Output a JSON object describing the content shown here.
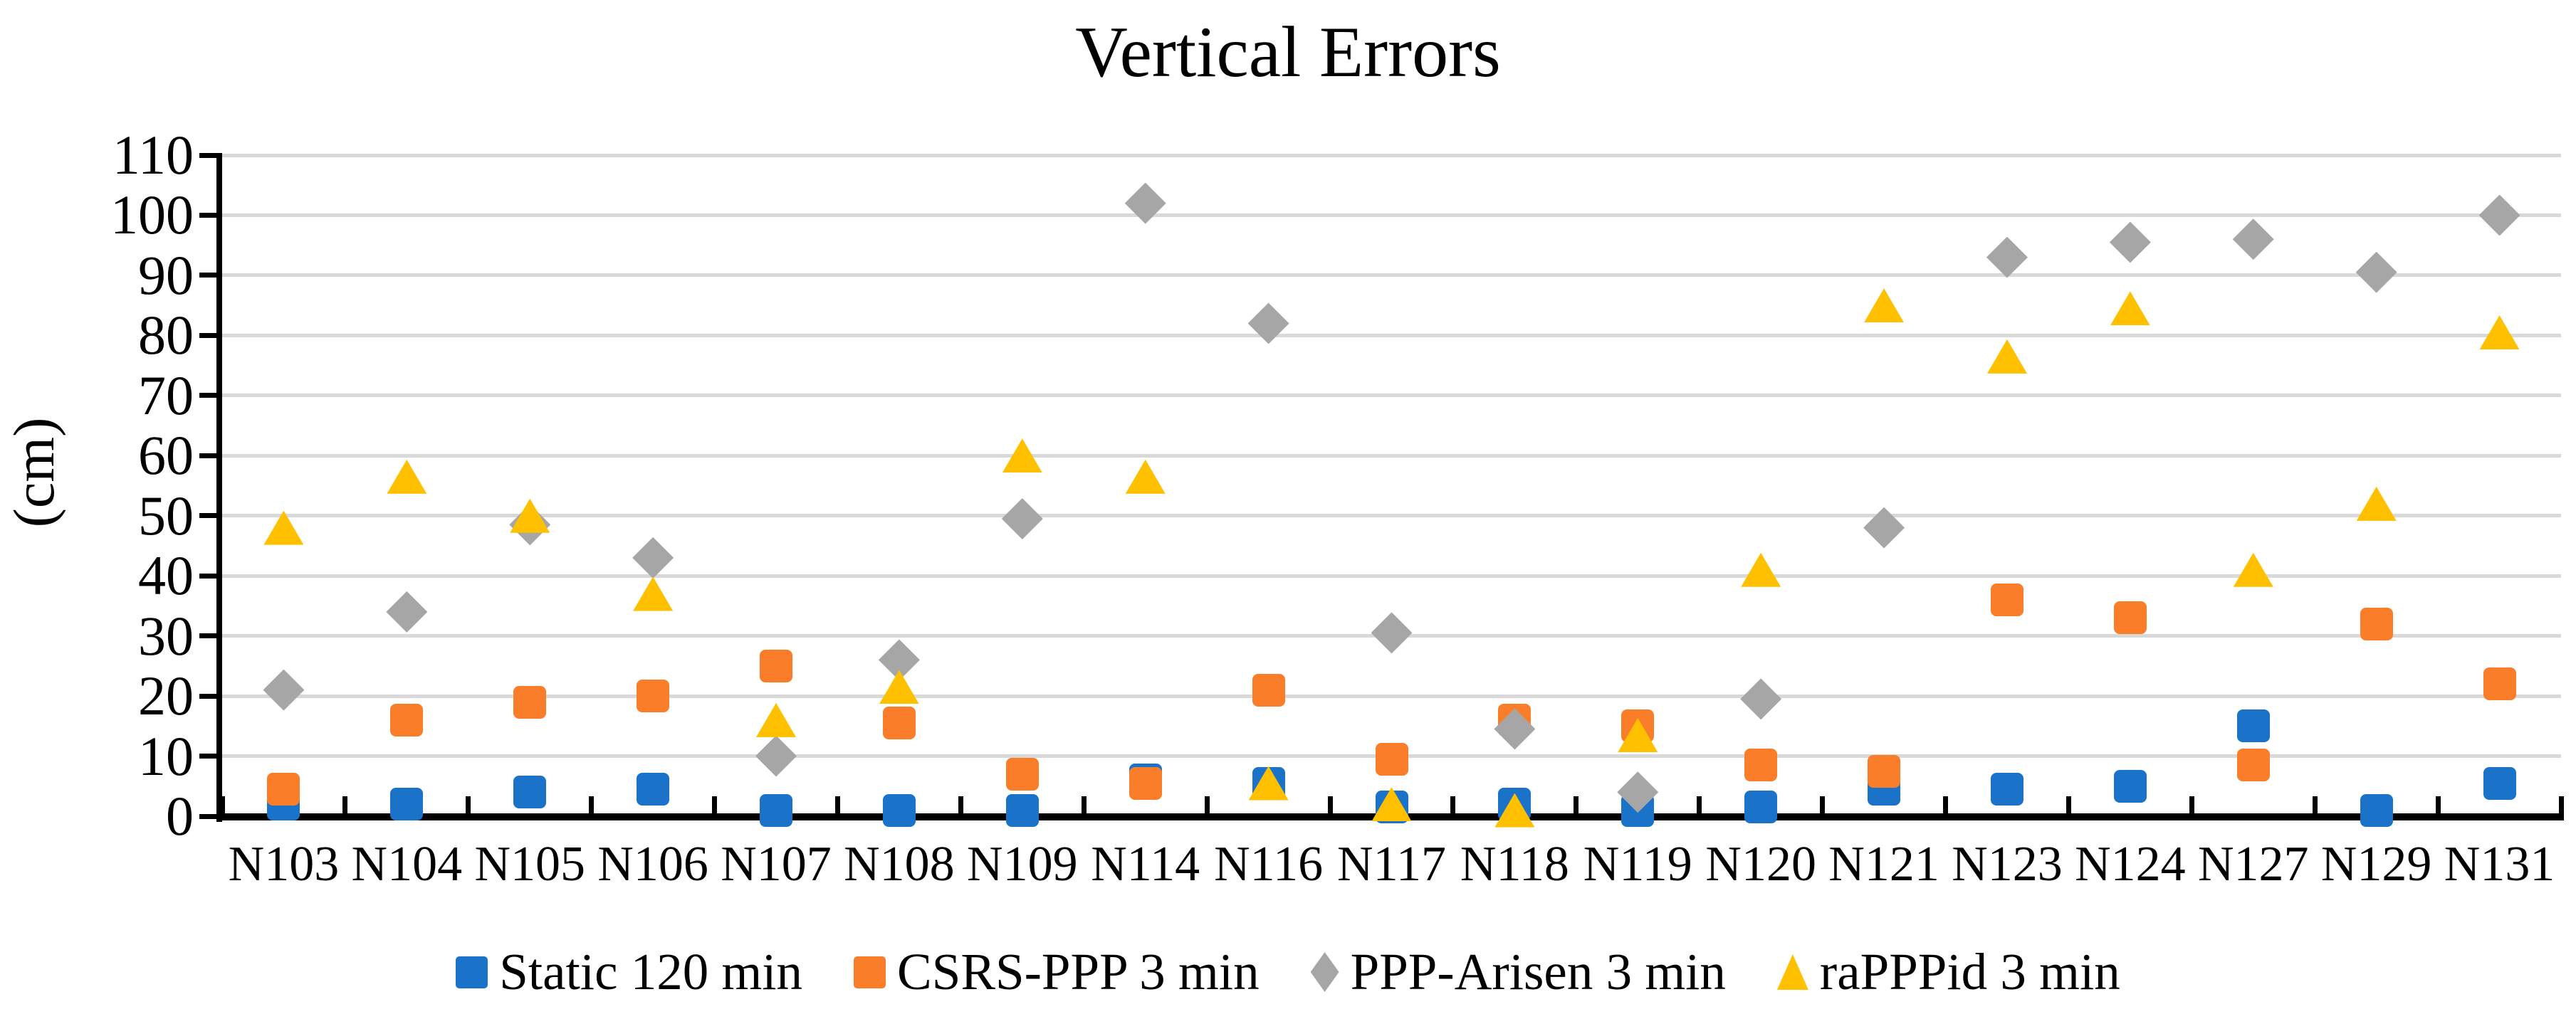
{
  "title": "Vertical Errors",
  "y_axis_title": "(cm)",
  "colors": {
    "background": "#FFFFFF",
    "gridline": "#D9D9D9",
    "axis": "#000000",
    "text": "#000000"
  },
  "chart_data": {
    "type": "scatter",
    "title": "Vertical Errors",
    "ylabel": "(cm)",
    "xlabel": "",
    "ylim": [
      0,
      110
    ],
    "y_step": 10,
    "y_ticks": [
      "0",
      "10",
      "20",
      "30",
      "40",
      "50",
      "60",
      "70",
      "80",
      "90",
      "100",
      "110"
    ],
    "grid": true,
    "legend_position": "bottom",
    "categories": [
      "N103",
      "N104",
      "N105",
      "N106",
      "N107",
      "N108",
      "N109",
      "N114",
      "N116",
      "N117",
      "N118",
      "N119",
      "N120",
      "N121",
      "N123",
      "N124",
      "N127",
      "N129",
      "N131"
    ],
    "series": [
      {
        "name": "Static 120 min",
        "marker": "square",
        "color": "#1A73C8",
        "values": [
          2,
          2,
          4,
          4.5,
          1,
          1,
          1,
          6,
          5.5,
          1.5,
          2,
          1,
          1.5,
          4.5,
          4.5,
          5,
          15,
          1,
          5.5
        ]
      },
      {
        "name": "CSRS-PPP 3 min",
        "marker": "square",
        "color": "#FA7D29",
        "values": [
          4.5,
          16,
          19,
          20,
          25,
          15.5,
          7,
          5.5,
          21,
          9.5,
          16,
          15,
          8.5,
          7.5,
          36,
          33,
          8.5,
          32,
          22
        ]
      },
      {
        "name": "PPP-Arisen 3 min",
        "marker": "diamond",
        "color": "#A6A6A6",
        "values": [
          21,
          34,
          48.5,
          43,
          10,
          26,
          49.5,
          102,
          82,
          30.5,
          14.5,
          4,
          19.5,
          48,
          93,
          95.5,
          96,
          90.5,
          100
        ]
      },
      {
        "name": "raPPPid 3 min",
        "marker": "triangle",
        "color": "#FFC000",
        "values": [
          48,
          56.5,
          50,
          37,
          16,
          21.5,
          60,
          56.5,
          5.5,
          2,
          1,
          13.5,
          41,
          85,
          76.5,
          84.5,
          41,
          52,
          80.5
        ]
      }
    ]
  }
}
